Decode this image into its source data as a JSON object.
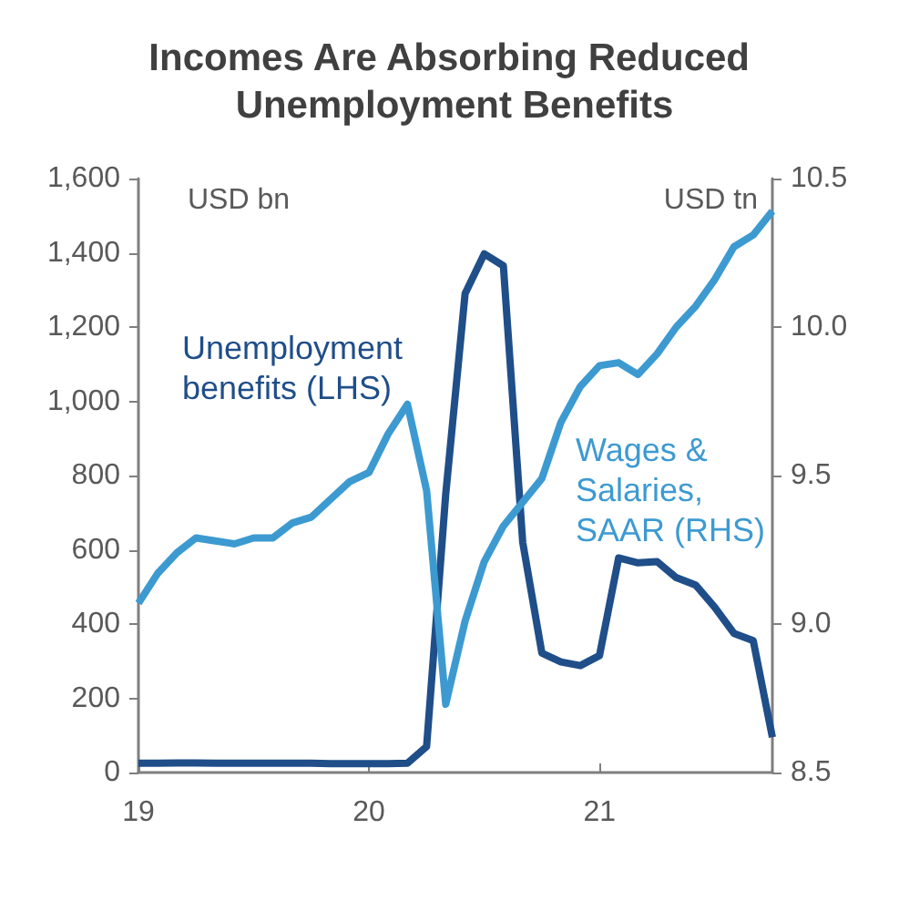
{
  "chart_data": {
    "type": "line",
    "title": "Incomes Are Absorbing Reduced Unemployment Benefits",
    "ylabel": "USD bn",
    "y2label": "USD tn",
    "x": [
      19,
      19.083,
      19.167,
      19.25,
      19.333,
      19.417,
      19.5,
      19.583,
      19.667,
      19.75,
      19.833,
      19.917,
      20,
      20.083,
      20.167,
      20.25,
      20.333,
      20.417,
      20.5,
      20.583,
      20.667,
      20.75,
      20.833,
      20.917,
      21,
      21.083,
      21.167,
      21.25,
      21.333,
      21.417,
      21.5,
      21.583,
      21.667,
      21.75
    ],
    "series": [
      {
        "name": "Unemployment benefits (LHS)",
        "color": "#1f4e89",
        "values": [
          25,
          25,
          26,
          26,
          25,
          25,
          25,
          25,
          25,
          25,
          24,
          24,
          24,
          24,
          25,
          70,
          750,
          1290,
          1397,
          1365,
          620,
          322,
          298,
          288,
          315,
          578,
          565,
          568,
          525,
          505,
          445,
          375,
          355,
          95
        ]
      },
      {
        "name": "Wages & Salaries, SAAR (RHS)",
        "color": "#3d9ad1",
        "axis": "y2",
        "values": [
          9.07,
          9.17,
          9.24,
          9.29,
          9.28,
          9.27,
          9.29,
          9.29,
          9.34,
          9.36,
          9.42,
          9.48,
          9.51,
          9.64,
          9.74,
          9.45,
          8.73,
          9.01,
          9.21,
          9.33,
          9.41,
          9.49,
          9.68,
          9.8,
          9.87,
          9.88,
          9.84,
          9.91,
          10,
          10.07,
          10.16,
          10.27,
          10.31,
          10.39
        ]
      }
    ],
    "xlim": [
      19,
      21.75
    ],
    "xticks": [
      19,
      20,
      21
    ],
    "ylim": [
      0,
      1600
    ],
    "yticks": [
      0,
      200,
      400,
      600,
      800,
      {
        "value": 1000,
        "label": "1,000"
      },
      {
        "value": 1200,
        "label": "1,200"
      },
      {
        "value": 1400,
        "label": "1,400"
      },
      {
        "value": 1600,
        "label": "1,600"
      }
    ],
    "y2lim": [
      8.5,
      10.5
    ],
    "y2ticks": [
      8.5,
      {
        "value": 9,
        "label": "9.0"
      },
      9.5,
      {
        "value": 10,
        "label": "10.0"
      },
      10.5
    ],
    "legend": false,
    "grid": false,
    "marker": "none",
    "line_style": "solid"
  }
}
